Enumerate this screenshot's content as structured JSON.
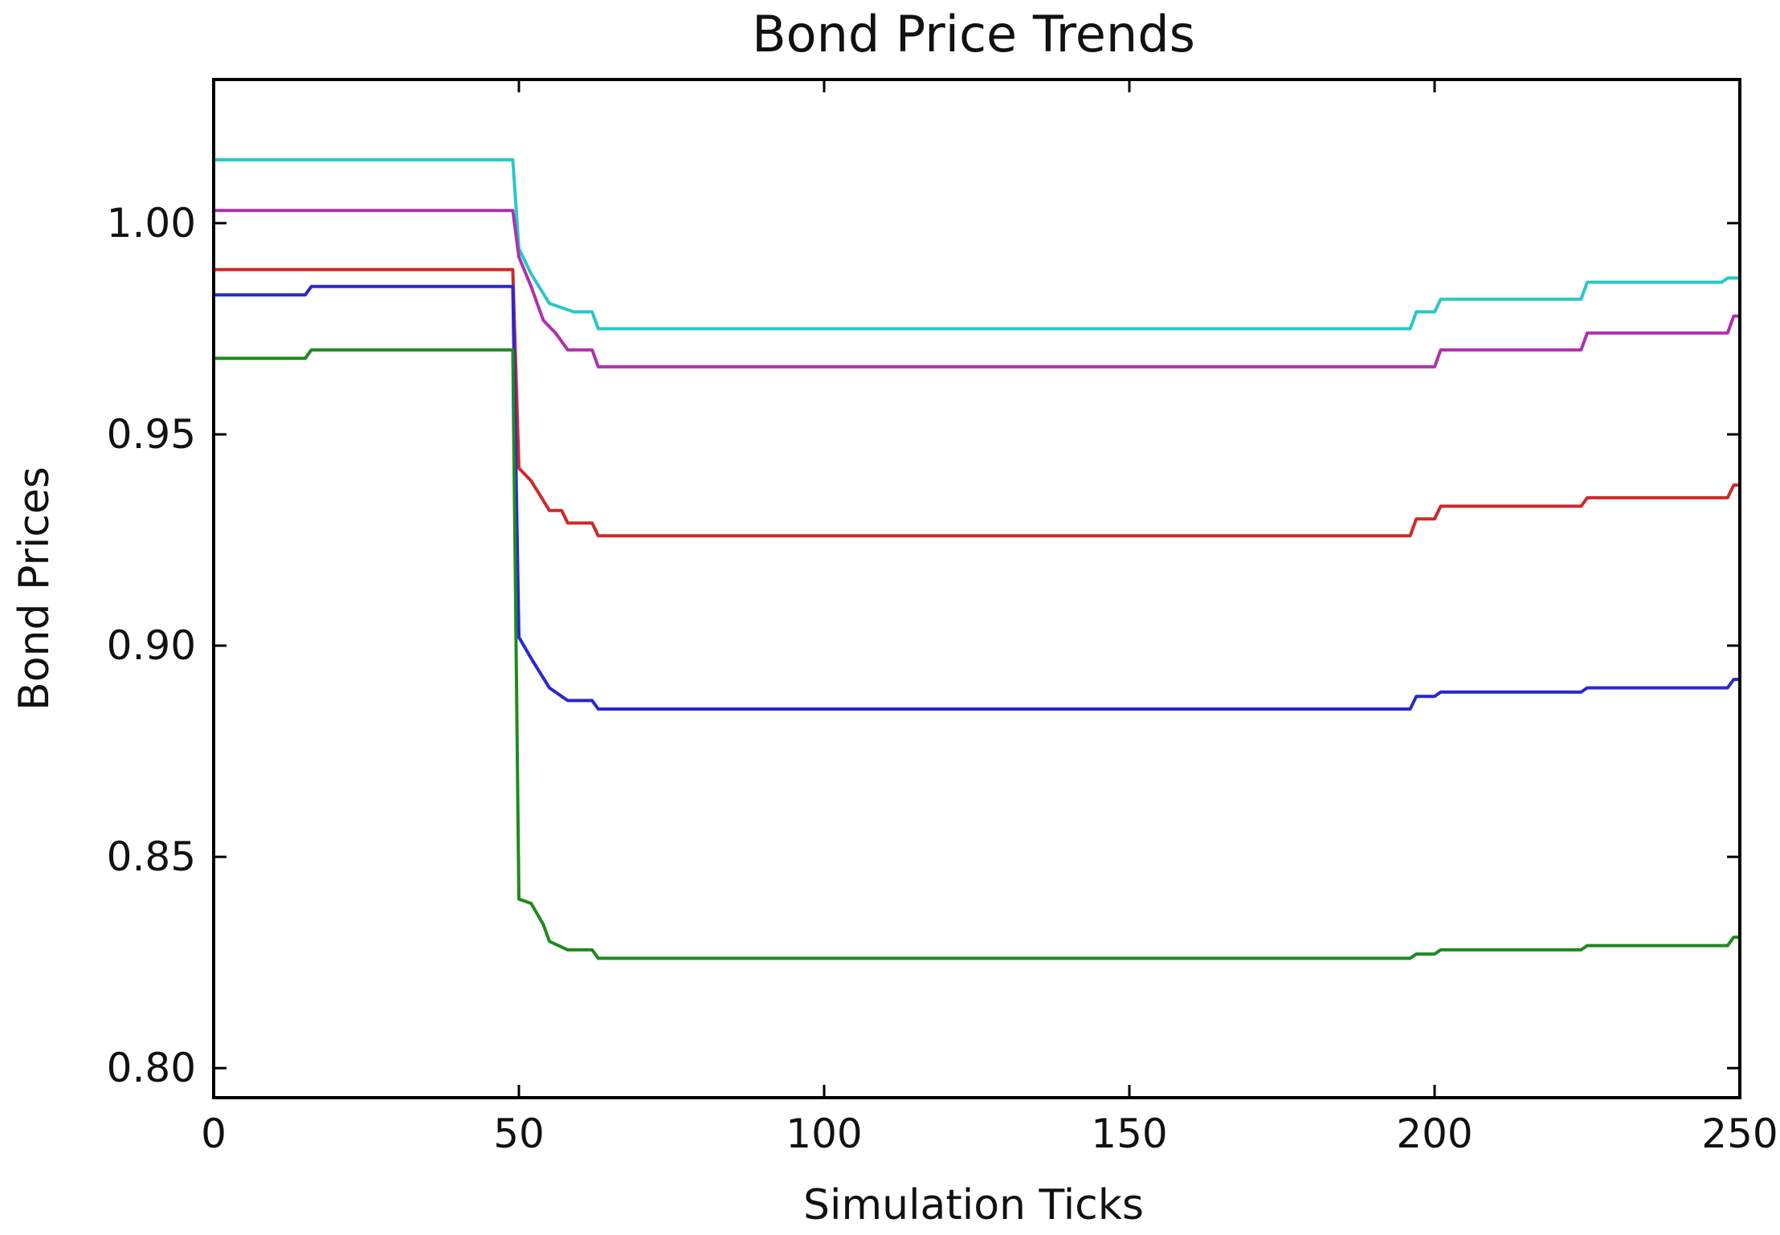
{
  "chart_data": {
    "type": "line",
    "title": "Bond Price Trends",
    "xlabel": "Simulation Ticks",
    "ylabel": "Bond Prices",
    "xlim": [
      0,
      250
    ],
    "ylim": [
      0.793,
      1.034
    ],
    "xticks": [
      0,
      50,
      100,
      150,
      200,
      250
    ],
    "xtick_labels": [
      "0",
      "50",
      "100",
      "150",
      "200",
      "250"
    ],
    "yticks": [
      0.8,
      0.85,
      0.9,
      0.95,
      1.0
    ],
    "ytick_labels": [
      "0.80",
      "0.85",
      "0.90",
      "0.95",
      "1.00"
    ],
    "grid": false,
    "series": [
      {
        "color": "#28c8c8",
        "points": [
          [
            0,
            1.015
          ],
          [
            49,
            1.015
          ],
          [
            50,
            0.994
          ],
          [
            52,
            0.988
          ],
          [
            55,
            0.981
          ],
          [
            59,
            0.979
          ],
          [
            62,
            0.979
          ],
          [
            63,
            0.975
          ],
          [
            196,
            0.975
          ],
          [
            197,
            0.979
          ],
          [
            200,
            0.979
          ],
          [
            201,
            0.982
          ],
          [
            224,
            0.982
          ],
          [
            225,
            0.986
          ],
          [
            247,
            0.986
          ],
          [
            248,
            0.987
          ],
          [
            250,
            0.987
          ]
        ]
      },
      {
        "color": "#b030b0",
        "points": [
          [
            0,
            1.003
          ],
          [
            49,
            1.003
          ],
          [
            50,
            0.992
          ],
          [
            52,
            0.985
          ],
          [
            54,
            0.977
          ],
          [
            56,
            0.974
          ],
          [
            58,
            0.97
          ],
          [
            62,
            0.97
          ],
          [
            63,
            0.966
          ],
          [
            200,
            0.966
          ],
          [
            201,
            0.97
          ],
          [
            224,
            0.97
          ],
          [
            225,
            0.974
          ],
          [
            248,
            0.974
          ],
          [
            249,
            0.978
          ],
          [
            250,
            0.978
          ]
        ]
      },
      {
        "color": "#d02828",
        "points": [
          [
            0,
            0.989
          ],
          [
            49,
            0.989
          ],
          [
            50,
            0.942
          ],
          [
            52,
            0.939
          ],
          [
            55,
            0.932
          ],
          [
            57,
            0.932
          ],
          [
            58,
            0.929
          ],
          [
            62,
            0.929
          ],
          [
            63,
            0.926
          ],
          [
            196,
            0.926
          ],
          [
            197,
            0.93
          ],
          [
            200,
            0.93
          ],
          [
            201,
            0.933
          ],
          [
            224,
            0.933
          ],
          [
            225,
            0.935
          ],
          [
            248,
            0.935
          ],
          [
            249,
            0.938
          ],
          [
            250,
            0.938
          ]
        ]
      },
      {
        "color": "#2828d0",
        "points": [
          [
            0,
            0.983
          ],
          [
            15,
            0.983
          ],
          [
            16,
            0.985
          ],
          [
            49,
            0.985
          ],
          [
            50,
            0.902
          ],
          [
            52,
            0.897
          ],
          [
            55,
            0.89
          ],
          [
            57,
            0.888
          ],
          [
            58,
            0.887
          ],
          [
            62,
            0.887
          ],
          [
            63,
            0.885
          ],
          [
            196,
            0.885
          ],
          [
            197,
            0.888
          ],
          [
            200,
            0.888
          ],
          [
            201,
            0.889
          ],
          [
            224,
            0.889
          ],
          [
            225,
            0.89
          ],
          [
            248,
            0.89
          ],
          [
            249,
            0.892
          ],
          [
            250,
            0.892
          ]
        ]
      },
      {
        "color": "#1f8a1f",
        "points": [
          [
            0,
            0.968
          ],
          [
            15,
            0.968
          ],
          [
            16,
            0.97
          ],
          [
            49,
            0.97
          ],
          [
            50,
            0.84
          ],
          [
            52,
            0.839
          ],
          [
            54,
            0.834
          ],
          [
            55,
            0.83
          ],
          [
            58,
            0.828
          ],
          [
            62,
            0.828
          ],
          [
            63,
            0.826
          ],
          [
            196,
            0.826
          ],
          [
            197,
            0.827
          ],
          [
            200,
            0.827
          ],
          [
            201,
            0.828
          ],
          [
            224,
            0.828
          ],
          [
            225,
            0.829
          ],
          [
            248,
            0.829
          ],
          [
            249,
            0.831
          ],
          [
            250,
            0.831
          ]
        ]
      }
    ]
  }
}
